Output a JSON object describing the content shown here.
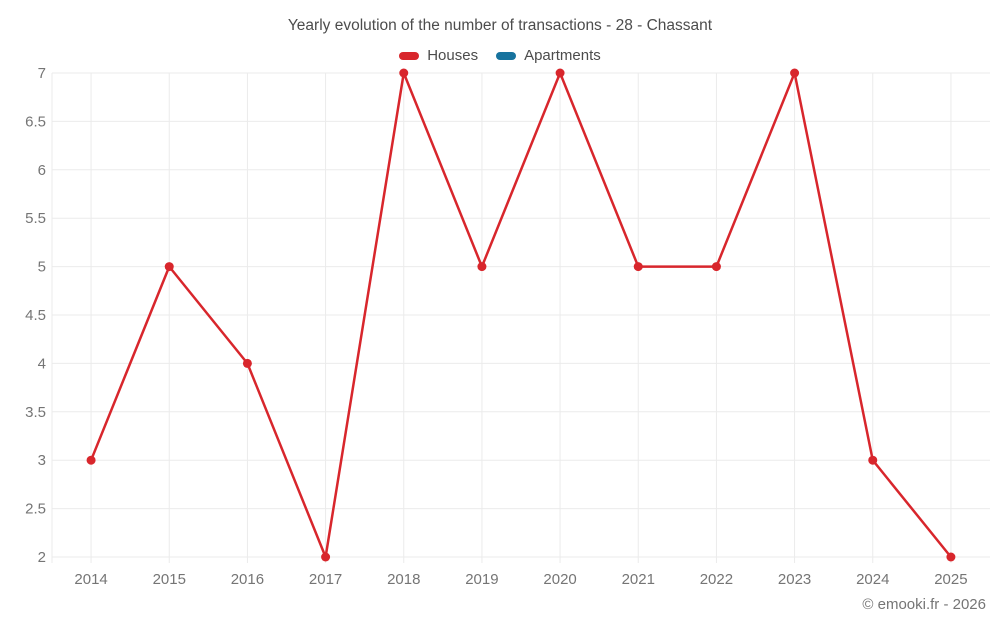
{
  "header": {
    "title": "Yearly evolution of the number of transactions - 28 - Chassant"
  },
  "legend": {
    "items": [
      {
        "label": "Houses",
        "color": "#d8262c"
      },
      {
        "label": "Apartments",
        "color": "#17739e"
      }
    ]
  },
  "chart_data": {
    "type": "line",
    "title": "Yearly evolution of the number of transactions - 28 - Chassant",
    "categories": [
      "2014",
      "2015",
      "2016",
      "2017",
      "2018",
      "2019",
      "2020",
      "2021",
      "2022",
      "2023",
      "2024",
      "2025"
    ],
    "series": [
      {
        "name": "Houses",
        "color": "#d8262c",
        "values": [
          3,
          5,
          4,
          2,
          7,
          5,
          7,
          5,
          5,
          7,
          3,
          2
        ]
      },
      {
        "name": "Apartments",
        "color": "#17739e",
        "values": []
      }
    ],
    "xlabel": "",
    "ylabel": "",
    "ylim": [
      2,
      7
    ],
    "ytick_step": 0.5,
    "grid": true,
    "legend_position": "top"
  },
  "footer": {
    "credit": "© emooki.fr - 2026"
  },
  "colors": {
    "grid": "#ebebeb",
    "tick_label": "#757575",
    "title_text": "#4c4c4c"
  }
}
